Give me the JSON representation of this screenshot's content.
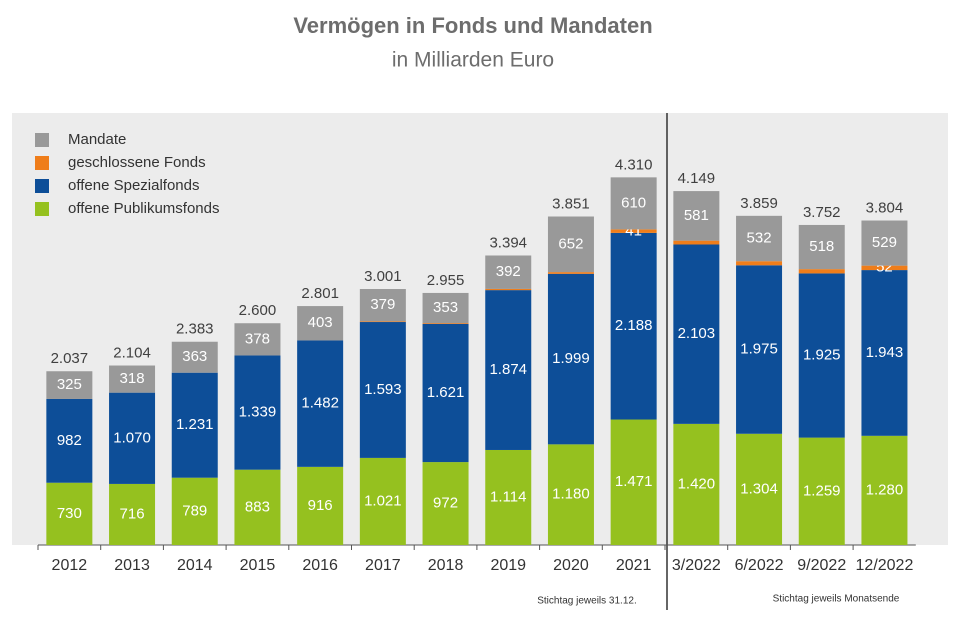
{
  "chart_data": {
    "type": "stacked-bar",
    "title": "Vermögen in Fonds und Mandaten",
    "subtitle": "in Milliarden Euro",
    "categories": [
      "2012",
      "2013",
      "2014",
      "2015",
      "2016",
      "2017",
      "2018",
      "2019",
      "2020",
      "2021",
      "3/2022",
      "6/2022",
      "9/2022",
      "12/2022"
    ],
    "series": [
      {
        "name": "offene Publikumsfonds",
        "color": "#95c11f",
        "values": [
          730,
          716,
          789,
          883,
          916,
          1021,
          972,
          1114,
          1180,
          1471,
          1420,
          1304,
          1259,
          1280
        ],
        "value_labels": [
          "730",
          "716",
          "789",
          "883",
          "916",
          "1.021",
          "972",
          "1.114",
          "1.180",
          "1.471",
          "1.420",
          "1.304",
          "1.259",
          "1.280"
        ]
      },
      {
        "name": "offene Spezialfonds",
        "color": "#0d4e98",
        "values": [
          982,
          1070,
          1231,
          1339,
          1482,
          1593,
          1621,
          1874,
          1999,
          2188,
          2103,
          1975,
          1925,
          1943
        ],
        "value_labels": [
          "982",
          "1.070",
          "1.231",
          "1.339",
          "1.482",
          "1.593",
          "1.621",
          "1.874",
          "1.999",
          "2.188",
          "2.103",
          "1.975",
          "1.925",
          "1.943"
        ]
      },
      {
        "name": "geschlossene Fonds",
        "color": "#ef7d1a",
        "values": [
          0,
          0,
          0,
          0,
          0,
          8,
          9,
          14,
          20,
          41,
          45,
          48,
          50,
          52
        ],
        "value_labels": [
          null,
          null,
          null,
          null,
          null,
          null,
          null,
          null,
          null,
          "41",
          null,
          null,
          null,
          "52"
        ]
      },
      {
        "name": "Mandate",
        "color": "#999999",
        "values": [
          325,
          318,
          363,
          378,
          403,
          379,
          353,
          392,
          652,
          610,
          581,
          532,
          518,
          529
        ],
        "value_labels": [
          "325",
          "318",
          "363",
          "378",
          "403",
          "379",
          "353",
          "392",
          "652",
          "610",
          "581",
          "532",
          "518",
          "529"
        ]
      }
    ],
    "totals": {
      "values": [
        2037,
        2104,
        2383,
        2600,
        2801,
        3001,
        2955,
        3394,
        3851,
        4310,
        4149,
        3859,
        3752,
        3804
      ],
      "value_labels": [
        "2.037",
        "2.104",
        "2.383",
        "2.600",
        "2.801",
        "3.001",
        "2.955",
        "3.394",
        "3.851",
        "4.310",
        "4.149",
        "3.859",
        "3.752",
        "3.804"
      ]
    },
    "annotations": [
      "Stichtag  jeweils 31.12.",
      "Stichtag  jeweils Monatsende"
    ]
  }
}
